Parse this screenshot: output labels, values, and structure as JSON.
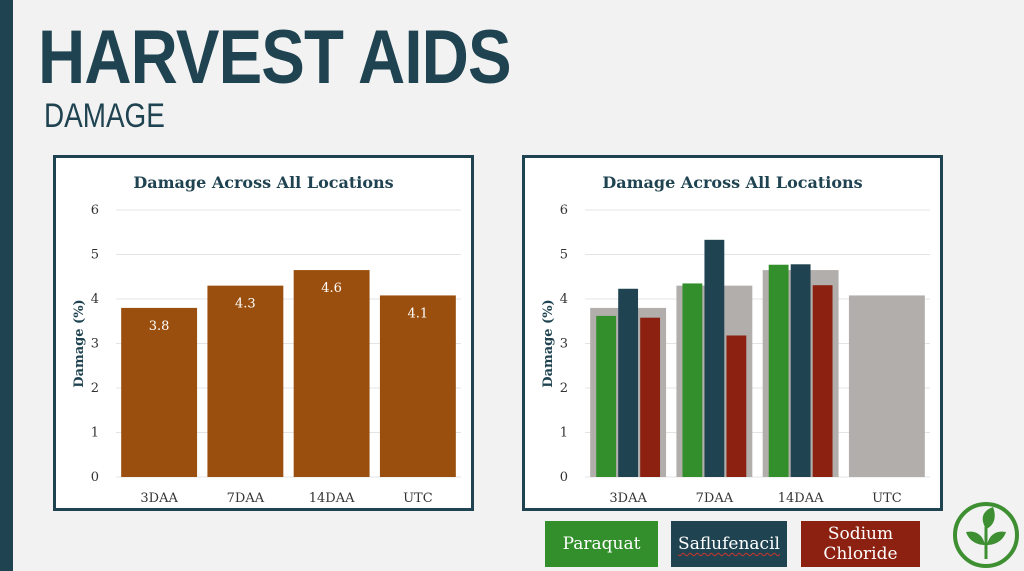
{
  "page": {
    "title": "HARVEST AIDS",
    "subtitle": "DAMAGE"
  },
  "colors": {
    "brand_dark": "#1f4350",
    "bar_orange": "#9a4f0e",
    "overall_gray": "#b2aeac",
    "paraquat": "#338f2b",
    "saflufenacil": "#1f4350",
    "sodium_chloride": "#8c2111"
  },
  "chart_data": [
    {
      "type": "bar",
      "title": "Damage Across All Locations",
      "xlabel": "",
      "ylabel": "Damage (%)",
      "ylim": [
        0,
        6
      ],
      "yticks": [
        "0",
        "1",
        "2",
        "3",
        "4",
        "5",
        "6"
      ],
      "categories": [
        "3DAA",
        "7DAA",
        "14DAA",
        "UTC"
      ],
      "series": [
        {
          "values": [
            3.8,
            4.3,
            4.65,
            4.08
          ],
          "labels": [
            "3.8",
            "4.3",
            "4.6",
            "4.1"
          ],
          "color": "#9a4f0e"
        }
      ],
      "grid": true,
      "legend": "none"
    },
    {
      "type": "bar",
      "title": "Damage Across All Locations",
      "xlabel": "",
      "ylabel": "Damage (%)",
      "ylim": [
        0,
        6
      ],
      "yticks": [
        "0",
        "1",
        "2",
        "3",
        "4",
        "5",
        "6"
      ],
      "categories": [
        "3DAA",
        "7DAA",
        "14DAA",
        "UTC"
      ],
      "background_series": {
        "values": [
          3.8,
          4.3,
          4.65,
          4.08
        ],
        "color": "#b2aeac"
      },
      "series": [
        {
          "name": "Paraquat",
          "values": [
            3.62,
            4.35,
            4.77,
            null
          ],
          "color": "#338f2b"
        },
        {
          "name": "Saflufenacil",
          "values": [
            4.23,
            5.33,
            4.78,
            null
          ],
          "color": "#1f4350"
        },
        {
          "name": "Sodium Chloride",
          "values": [
            3.58,
            3.18,
            4.31,
            null
          ],
          "color": "#8c2111"
        }
      ],
      "grid": true,
      "legend": "bottom"
    }
  ],
  "legend": [
    {
      "label": "Paraquat",
      "color": "#338f2b"
    },
    {
      "label": "Saflufenacil",
      "color": "#1f4350"
    },
    {
      "label": "Sodium\nChloride",
      "color": "#8c2111"
    }
  ],
  "logo": {
    "icon": "leaf-sprout-icon",
    "color": "#3d8f31"
  }
}
